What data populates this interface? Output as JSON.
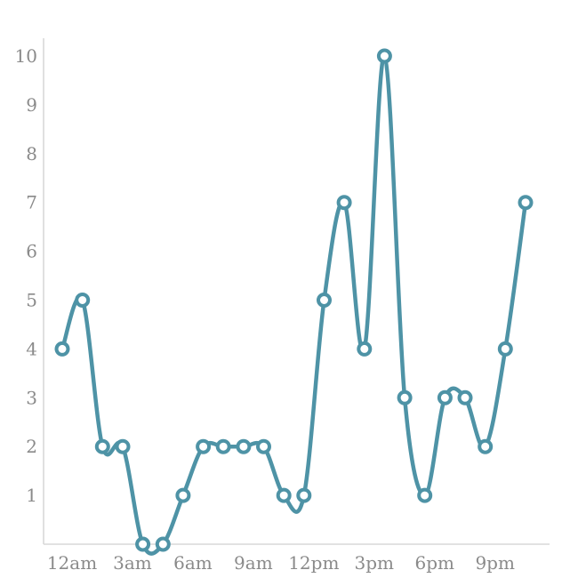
{
  "chart_data": {
    "type": "line",
    "title": "",
    "xlabel": "",
    "ylabel": "",
    "x": [
      "12am",
      "1am",
      "2am",
      "3am",
      "4am",
      "5am",
      "6am",
      "7am",
      "8am",
      "9am",
      "10am",
      "11am",
      "12pm",
      "1pm",
      "2pm",
      "3pm",
      "4pm",
      "5pm",
      "6pm",
      "7pm",
      "8pm",
      "9pm",
      "10pm",
      "11pm"
    ],
    "values": [
      4,
      5,
      2,
      2,
      0,
      0,
      1,
      2,
      2,
      2,
      2,
      1,
      1,
      5,
      7,
      4,
      10,
      3,
      1,
      3,
      3,
      2,
      4,
      7
    ],
    "x_tick_labels": [
      "12am",
      "3am",
      "6am",
      "9am",
      "12pm",
      "3pm",
      "6pm",
      "9pm"
    ],
    "x_tick_hours": [
      0,
      3,
      6,
      9,
      12,
      15,
      18,
      21
    ],
    "y_ticks": [
      1,
      2,
      3,
      4,
      5,
      6,
      7,
      8,
      9,
      10
    ],
    "ylim": [
      0,
      10.4
    ],
    "grid": false,
    "legend": "none",
    "line_smoothing": "catmull-rom",
    "marker": "open-circle",
    "colors": {
      "line": "#4E93A6",
      "marker_fill": "#FFFFFF",
      "axis": "#D9D9D9",
      "tick_label": "#8A8A8A",
      "background": "#FFFFFF"
    }
  }
}
